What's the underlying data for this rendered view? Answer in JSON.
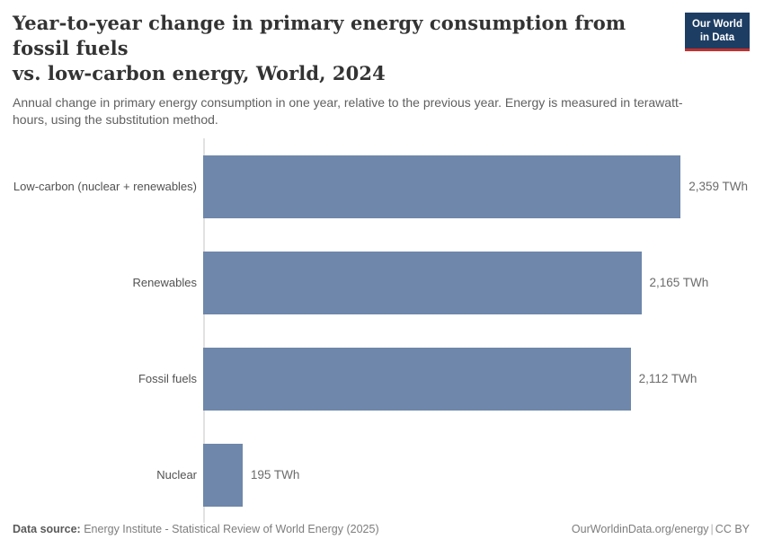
{
  "header": {
    "title_line1": "Year-to-year change in primary energy consumption from fossil fuels",
    "title_line2": "vs. low-carbon energy, World, 2024",
    "subtitle": "Annual change in primary energy consumption in one year, relative to the previous year. Energy is measured in terawatt-hours, using the substitution method.",
    "logo": {
      "line1": "Our World",
      "line2": "in Data",
      "bg_color": "#1d3d63",
      "underline_color": "#c2302e"
    }
  },
  "chart_data": {
    "type": "bar",
    "orientation": "horizontal",
    "categories": [
      "Low-carbon (nuclear + renewables)",
      "Renewables",
      "Fossil fuels",
      "Nuclear"
    ],
    "values": [
      2359,
      2165,
      2112,
      195
    ],
    "value_labels": [
      "2,359 TWh",
      "2,165 TWh",
      "2,112 TWh",
      "195 TWh"
    ],
    "unit": "TWh",
    "title": "Year-to-year change in primary energy consumption from fossil fuels vs. low-carbon energy, World, 2024",
    "xlabel": "",
    "ylabel": "",
    "xlim": [
      0,
      2700
    ],
    "grid": false,
    "legend": "none",
    "bar_color": "#6e87ab",
    "axis_line_color": "#e2e2e2"
  },
  "footer": {
    "data_source_label": "Data source:",
    "data_source": "Energy Institute - Statistical Review of World Energy (2025)",
    "site": "OurWorldinData.org/energy",
    "separator": "|",
    "license": "CC BY"
  }
}
